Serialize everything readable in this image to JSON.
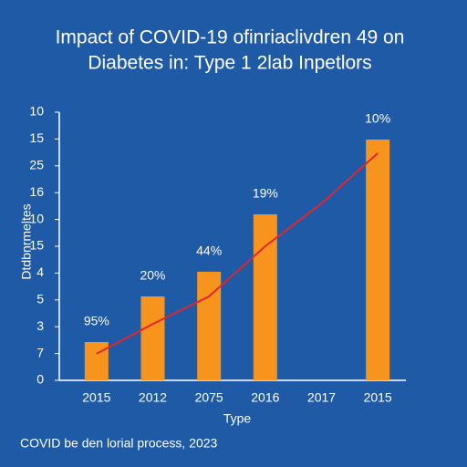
{
  "chart_data": {
    "type": "bar",
    "title_lines": [
      "Impact of COVID-19 ofinriaclivdren 49 on",
      "Diabetes in: Type 1 2lab Inpetlors"
    ],
    "ylabel": "Dtdbnrmeltes",
    "xlabel": "Type",
    "footer": "COVID be den lorial process, 2023",
    "categories": [
      "2015",
      "2012",
      "2075",
      "2016",
      "2017",
      "2015"
    ],
    "series": [
      {
        "type": "bar",
        "color": "#f7941d",
        "values": [
          1.43,
          3.13,
          4.05,
          6.19,
          null,
          8.98
        ],
        "value_labels": [
          "95%",
          "20%",
          "44%",
          "19%",
          null,
          "10%"
        ]
      },
      {
        "type": "line",
        "color": "#e0262b",
        "values": [
          0.99,
          2.1,
          3.13,
          5.0,
          6.6,
          8.47
        ]
      }
    ],
    "ylim": [
      0,
      10
    ],
    "yticks": [
      0,
      {
        "value": 1,
        "label": "7"
      },
      {
        "value": 2,
        "label": "3"
      },
      {
        "value": 3,
        "label": "5"
      },
      4,
      {
        "value": 5,
        "label": "15"
      },
      {
        "value": 6,
        "label": "10"
      },
      {
        "value": 7,
        "label": "16"
      },
      {
        "value": 8,
        "label": "25"
      },
      {
        "value": 9,
        "label": "15"
      },
      10
    ]
  }
}
